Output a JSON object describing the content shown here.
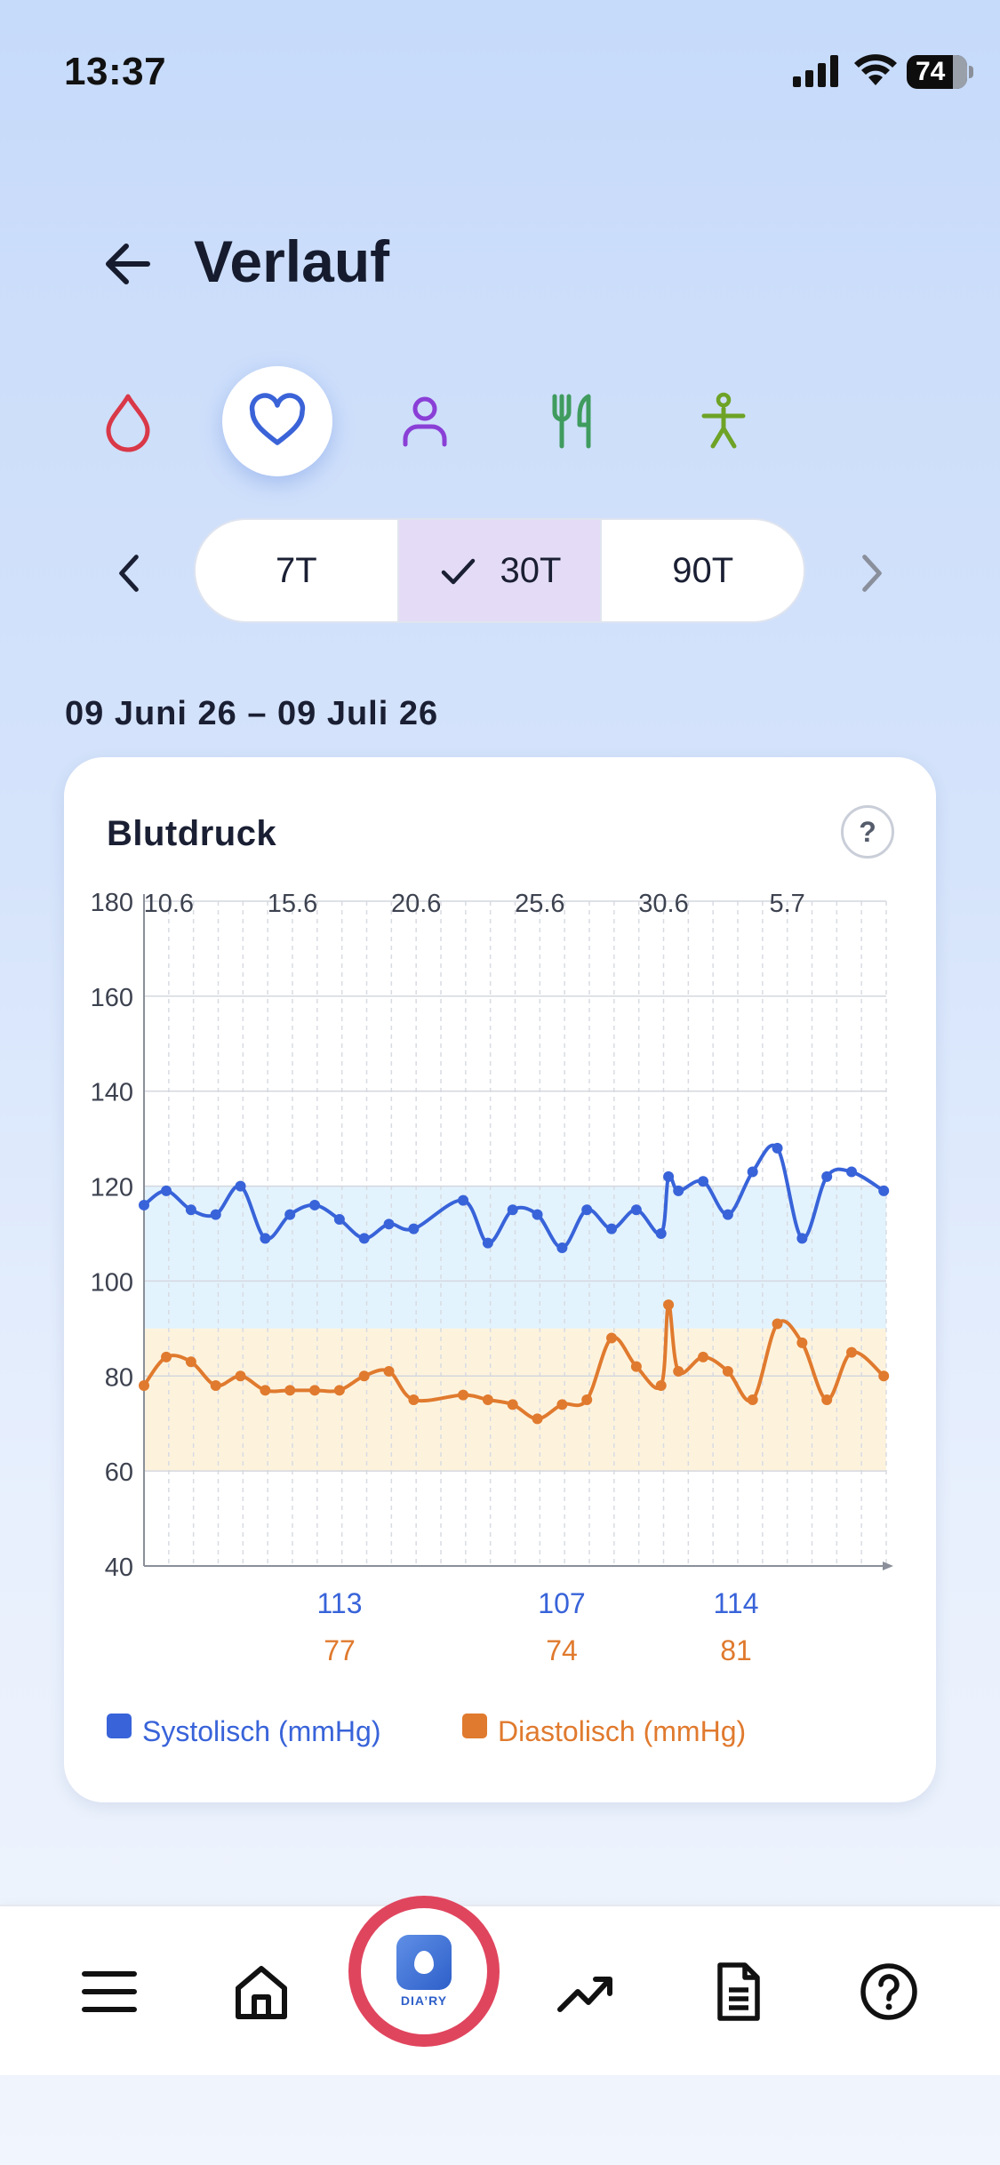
{
  "status": {
    "time": "13:37",
    "battery": "74"
  },
  "header": {
    "title": "Verlauf"
  },
  "categories": [
    {
      "key": "drop-icon",
      "color": "#d93848",
      "active": false
    },
    {
      "key": "heart-icon",
      "color": "#3b63d8",
      "active": true
    },
    {
      "key": "person-icon",
      "color": "#8a3fd6",
      "active": false
    },
    {
      "key": "fork-knife-icon",
      "color": "#3f9c5e",
      "active": false
    },
    {
      "key": "activity-icon",
      "color": "#6ea326",
      "active": false
    }
  ],
  "period": {
    "options": [
      "7T",
      "30T",
      "90T"
    ],
    "selected": "30T"
  },
  "date_range": "09 Juni 26 – 09 Juli 26",
  "card": {
    "title": "Blutdruck",
    "help": "?",
    "legend_systolic": "Systolisch (mmHg)",
    "legend_diastolic": "Diastolisch (mmHg)",
    "avg_labels": [
      {
        "sys": "113",
        "dia": "77"
      },
      {
        "sys": "107",
        "dia": "74"
      },
      {
        "sys": "114",
        "dia": "81"
      }
    ]
  },
  "chart_data": {
    "type": "line",
    "title": "Blutdruck",
    "ylim": [
      40,
      180
    ],
    "yticks": [
      40,
      60,
      80,
      100,
      120,
      140,
      160,
      180
    ],
    "x_tick_labels": [
      "10.6",
      "15.6",
      "20.6",
      "25.6",
      "30.6",
      "5.7"
    ],
    "x_tick_days": [
      1,
      6,
      11,
      16,
      21,
      26
    ],
    "x_range_days": [
      0,
      30
    ],
    "normal_bands": [
      {
        "name": "systolic-range",
        "from": 90,
        "to": 120,
        "color": "#e3f3fd"
      },
      {
        "name": "diastolic-range",
        "from": 60,
        "to": 90,
        "color": "#fdf3dd"
      }
    ],
    "grid": true,
    "series": [
      {
        "name": "Systolisch (mmHg)",
        "color": "#3863d9",
        "x": [
          0,
          0.9,
          1.9,
          2.9,
          3.9,
          4.9,
          5.9,
          6.9,
          7.9,
          8.9,
          9.9,
          10.9,
          12.9,
          13.9,
          14.9,
          15.9,
          16.9,
          17.9,
          18.9,
          19.9,
          20.9,
          21.2,
          21.6,
          22.6,
          23.6,
          24.6,
          25.6,
          26.6,
          27.6,
          28.6,
          29.9
        ],
        "values": [
          116,
          119,
          115,
          114,
          120,
          109,
          114,
          116,
          113,
          109,
          112,
          111,
          117,
          108,
          115,
          114,
          107,
          115,
          111,
          115,
          110,
          122,
          119,
          121,
          114,
          123,
          128,
          109,
          122,
          123,
          119
        ]
      },
      {
        "name": "Diastolisch (mmHg)",
        "color": "#e07a2e",
        "x": [
          0,
          0.9,
          1.9,
          2.9,
          3.9,
          4.9,
          5.9,
          6.9,
          7.9,
          8.9,
          9.9,
          10.9,
          12.9,
          13.9,
          14.9,
          15.9,
          16.9,
          17.9,
          18.9,
          19.9,
          20.9,
          21.2,
          21.6,
          22.6,
          23.6,
          24.6,
          25.6,
          26.6,
          27.6,
          28.6,
          29.9
        ],
        "values": [
          78,
          84,
          83,
          78,
          80,
          77,
          77,
          77,
          77,
          80,
          81,
          75,
          76,
          75,
          74,
          71,
          74,
          75,
          88,
          82,
          78,
          95,
          81,
          84,
          81,
          75,
          91,
          87,
          75,
          85,
          80
        ]
      }
    ]
  },
  "tabbar": {
    "items": [
      "menu-icon",
      "home-icon",
      "dia-ry-logo",
      "trend-icon",
      "document-icon",
      "help-icon"
    ],
    "logo_text": "DIA’RY"
  }
}
